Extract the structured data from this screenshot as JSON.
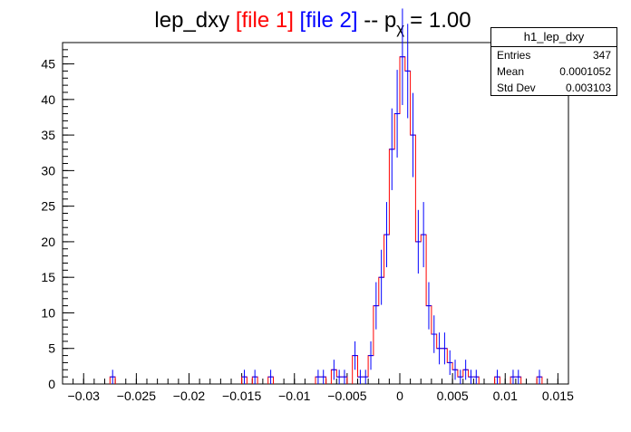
{
  "title": {
    "name": "lep_dxy",
    "file1": "[file 1]",
    "file2": "[file 2]",
    "suffix": "-- p",
    "subscript": "χ",
    "value": "= 1.00"
  },
  "colors": {
    "file1": "#ff0000",
    "file2": "#0000ff",
    "axis": "#000000"
  },
  "stats": {
    "name": "h1_lep_dxy",
    "entries_label": "Entries",
    "entries": "347",
    "mean_label": "Mean",
    "mean": "0.0001052",
    "stddev_label": "Std Dev",
    "stddev": "0.003103"
  },
  "chart_data": {
    "type": "histogram",
    "xlim": [
      -0.032,
      0.016
    ],
    "ylim": [
      0,
      48
    ],
    "bin_width": 0.0005,
    "xticks": [
      {
        "v": -0.03,
        "label": "−0.03"
      },
      {
        "v": -0.025,
        "label": "−0.025"
      },
      {
        "v": -0.02,
        "label": "−0.02"
      },
      {
        "v": -0.015,
        "label": "−0.015"
      },
      {
        "v": -0.01,
        "label": "−0.01"
      },
      {
        "v": -0.005,
        "label": "−0.005"
      },
      {
        "v": 0,
        "label": "0"
      },
      {
        "v": 0.005,
        "label": "0.005"
      },
      {
        "v": 0.01,
        "label": "0.01"
      },
      {
        "v": 0.015,
        "label": "0.015"
      }
    ],
    "yticks": [
      {
        "v": 0,
        "label": "0"
      },
      {
        "v": 5,
        "label": "5"
      },
      {
        "v": 10,
        "label": "10"
      },
      {
        "v": 15,
        "label": "15"
      },
      {
        "v": 20,
        "label": "20"
      },
      {
        "v": 25,
        "label": "25"
      },
      {
        "v": 30,
        "label": "30"
      },
      {
        "v": 35,
        "label": "35"
      },
      {
        "v": 40,
        "label": "40"
      },
      {
        "v": 45,
        "label": "45"
      }
    ],
    "bins": [
      {
        "x": -0.0275,
        "y": 1
      },
      {
        "x": -0.015,
        "y": 1
      },
      {
        "x": -0.014,
        "y": 1
      },
      {
        "x": -0.0125,
        "y": 1
      },
      {
        "x": -0.008,
        "y": 1
      },
      {
        "x": -0.0075,
        "y": 1
      },
      {
        "x": -0.0065,
        "y": 2
      },
      {
        "x": -0.006,
        "y": 1
      },
      {
        "x": -0.0055,
        "y": 1
      },
      {
        "x": -0.0045,
        "y": 4
      },
      {
        "x": -0.004,
        "y": 1
      },
      {
        "x": -0.0035,
        "y": 1
      },
      {
        "x": -0.003,
        "y": 4
      },
      {
        "x": -0.0025,
        "y": 11
      },
      {
        "x": -0.002,
        "y": 15
      },
      {
        "x": -0.0015,
        "y": 21
      },
      {
        "x": -0.001,
        "y": 33
      },
      {
        "x": -0.0005,
        "y": 38
      },
      {
        "x": 0.0,
        "y": 46
      },
      {
        "x": 0.0005,
        "y": 44
      },
      {
        "x": 0.001,
        "y": 35
      },
      {
        "x": 0.0015,
        "y": 20
      },
      {
        "x": 0.002,
        "y": 21
      },
      {
        "x": 0.0025,
        "y": 11
      },
      {
        "x": 0.003,
        "y": 7
      },
      {
        "x": 0.0035,
        "y": 5
      },
      {
        "x": 0.004,
        "y": 5
      },
      {
        "x": 0.0045,
        "y": 3
      },
      {
        "x": 0.005,
        "y": 2
      },
      {
        "x": 0.0055,
        "y": 1
      },
      {
        "x": 0.006,
        "y": 2
      },
      {
        "x": 0.0065,
        "y": 1
      },
      {
        "x": 0.007,
        "y": 1
      },
      {
        "x": 0.009,
        "y": 1
      },
      {
        "x": 0.0105,
        "y": 1
      },
      {
        "x": 0.011,
        "y": 1
      },
      {
        "x": 0.013,
        "y": 1
      }
    ]
  }
}
